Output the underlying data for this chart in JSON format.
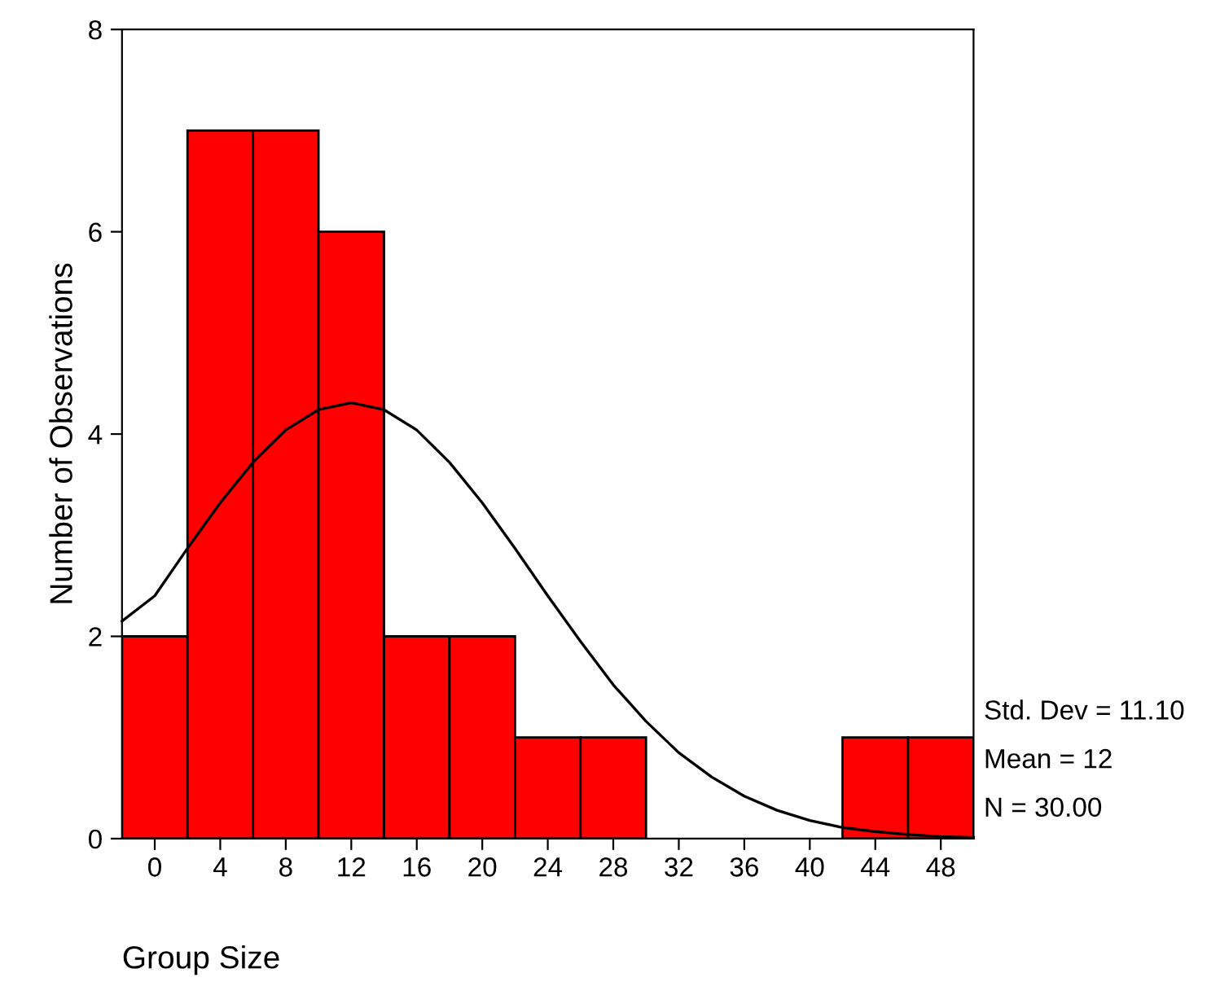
{
  "chart_data": {
    "type": "histogram",
    "xlabel": "Group Size",
    "ylabel": "Number of Observations",
    "bins": [
      -2,
      2,
      6,
      10,
      14,
      18,
      22,
      26,
      30,
      34,
      38,
      42,
      46,
      50
    ],
    "values": [
      2,
      7,
      7,
      6,
      2,
      2,
      1,
      1,
      0,
      0,
      0,
      1,
      1
    ],
    "color": "#ff0000",
    "series": [
      {
        "type": "line",
        "color": "#000000",
        "x": [
          -2,
          0,
          2,
          4,
          6,
          8,
          10,
          12,
          14,
          16,
          18,
          20,
          22,
          24,
          26,
          28,
          30,
          32,
          34,
          36,
          38,
          40,
          42,
          44,
          46,
          48,
          50
        ],
        "values": [
          2.15,
          2.4,
          2.87,
          3.32,
          3.72,
          4.04,
          4.24,
          4.31,
          4.24,
          4.04,
          3.72,
          3.32,
          2.87,
          2.4,
          1.95,
          1.52,
          1.16,
          0.85,
          0.61,
          0.42,
          0.28,
          0.18,
          0.11,
          0.07,
          0.04,
          0.02,
          0.01
        ]
      }
    ],
    "xlim": [
      -2,
      50
    ],
    "ylim": [
      0,
      8
    ],
    "grid": false,
    "legend": false,
    "xticks": [
      0,
      4,
      8,
      12,
      16,
      20,
      24,
      28,
      32,
      36,
      40,
      44,
      48
    ],
    "yticks": [
      0,
      2,
      4,
      6,
      8
    ],
    "annotations": [
      "Std. Dev = 11.10",
      "Mean = 12",
      "N = 30.00"
    ]
  }
}
